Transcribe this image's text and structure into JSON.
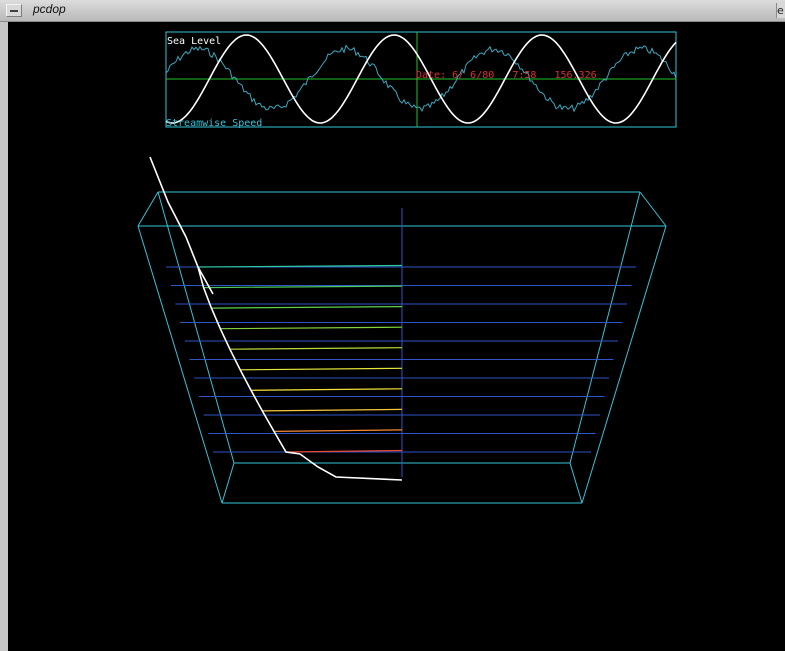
{
  "window": {
    "title": "pcdop",
    "right_control_glyph": "e"
  },
  "plot": {
    "top_label": "Sea Level",
    "bottom_label": "Streamwise Speed",
    "readout": "Date: 6/ 6/80   7:58   156.326"
  },
  "colors": {
    "background": "#000000",
    "frame": "#35c3d8",
    "sea_level_curve": "#ffffff",
    "speed_curve": "#3aa9c0",
    "cursor": "#22c22a",
    "readout": "#e03030",
    "grid": "#2f55c8",
    "profile_line": "#ffffff"
  },
  "profile_levels": [
    {
      "color": "#2fc6a0"
    },
    {
      "color": "#4cc85a"
    },
    {
      "color": "#5fd04a"
    },
    {
      "color": "#86d43a"
    },
    {
      "color": "#b8db3a"
    },
    {
      "color": "#e7e73a"
    },
    {
      "color": "#f4e23a"
    },
    {
      "color": "#f5c83a"
    },
    {
      "color": "#f58a3a"
    },
    {
      "color": "#e84a3a"
    }
  ]
}
